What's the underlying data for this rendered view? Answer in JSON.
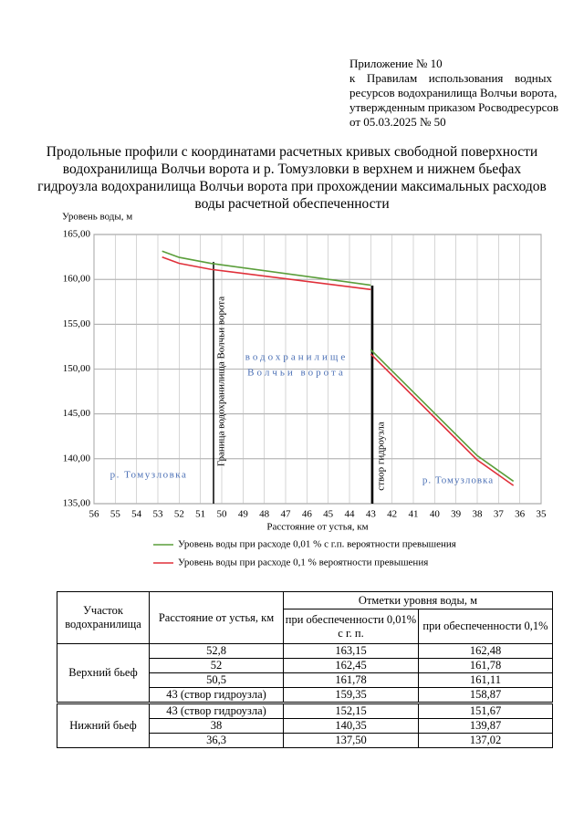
{
  "header": {
    "lines": [
      "Приложение № 10",
      "к Правилам использования водных",
      "ресурсов водохранилища Волчьи ворота,",
      "утвержденным приказом Росводресурсов",
      "от 05.03.2025 № 50"
    ]
  },
  "title": [
    "Продольные профили с координатами расчетных кривых свободной поверхности",
    "водохранилища Волчьи ворота и р. Томузловки в верхнем и нижнем бьефах",
    "гидроузла водохранилища Волчьи ворота при прохождении максимальных расходов",
    "воды расчетной обеспеченности"
  ],
  "chart_data": {
    "type": "line",
    "y_label": "Уровень воды, м",
    "x_label": "Расстояние от устья, км",
    "x": [
      52.8,
      52,
      50.5,
      43,
      null,
      43,
      38,
      36.3
    ],
    "xlim": [
      56,
      35
    ],
    "xticks": [
      56,
      55,
      54,
      53,
      52,
      51,
      50,
      49,
      48,
      47,
      46,
      45,
      44,
      43,
      42,
      41,
      40,
      39,
      38,
      37,
      36,
      35
    ],
    "ylim": [
      135,
      165
    ],
    "yticks": [
      {
        "value": 135,
        "label": "135,00"
      },
      {
        "value": 140,
        "label": "140,00"
      },
      {
        "value": 145,
        "label": "145,00"
      },
      {
        "value": 150,
        "label": "150,00"
      },
      {
        "value": 155,
        "label": "155,00"
      },
      {
        "value": 160,
        "label": "160,00"
      },
      {
        "value": 165,
        "label": "165,00"
      }
    ],
    "grid": true,
    "series": [
      {
        "name": "Уровень воды при расходе 0,01 % с г.п. вероятности превышения",
        "color": "#5a9e3a",
        "values": [
          163.15,
          162.45,
          161.78,
          159.35,
          null,
          152.15,
          140.35,
          137.5
        ]
      },
      {
        "name": "Уровень воды при расходе 0,1 % вероятности превышения",
        "color": "#e0303a",
        "values": [
          162.48,
          161.78,
          161.11,
          158.87,
          null,
          151.67,
          139.87,
          137.02
        ]
      }
    ],
    "annotations": [
      "Граница водохранилища Волчьи ворота",
      "водохранилище",
      "Волчьи ворота",
      "створ гидроузла",
      "р. Томузловка",
      "р. Томузловка"
    ]
  },
  "table": {
    "header": [
      "Участок водохранилища",
      "Расстояние от устья, км",
      "Отметки уровня воды, м",
      "при обеспеченности 0,01% с г. п.",
      "при обеспеченности 0,1%"
    ],
    "groups": [
      {
        "name": "Верхний бьеф",
        "rows": [
          [
            "52,8",
            "163,15",
            "162,48"
          ],
          [
            "52",
            "162,45",
            "161,78"
          ],
          [
            "50,5",
            "161,78",
            "161,11"
          ],
          [
            "43 (створ гидроузла)",
            "159,35",
            "158,87"
          ]
        ]
      },
      {
        "name": "Нижний бьеф",
        "rows": [
          [
            "43 (створ гидроузла)",
            "152,15",
            "151,67"
          ],
          [
            "38",
            "140,35",
            "139,87"
          ],
          [
            "36,3",
            "137,50",
            "137,02"
          ]
        ]
      }
    ]
  }
}
